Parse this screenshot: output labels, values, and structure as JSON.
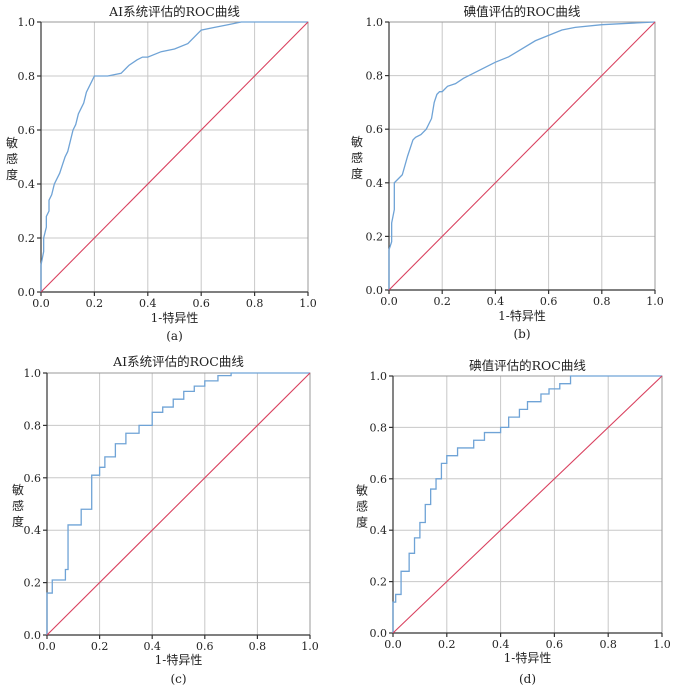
{
  "chart_data": [
    {
      "panel": "(a)",
      "type": "line",
      "title": "AI系统评估的ROC曲线",
      "xlabel": "1-特异性",
      "ylabel": "敏感度",
      "caption": "(a)",
      "xlim": [
        0,
        1
      ],
      "ylim": [
        0,
        1
      ],
      "xticks": [
        "0.0",
        "0.2",
        "0.4",
        "0.6",
        "0.8",
        "1.0"
      ],
      "yticks": [
        "0.0",
        "0.2",
        "0.4",
        "0.6",
        "0.8",
        "1.0"
      ],
      "series": [
        {
          "name": "ROC",
          "x": [
            0,
            0,
            0.01,
            0.01,
            0.02,
            0.02,
            0.03,
            0.03,
            0.04,
            0.05,
            0.06,
            0.07,
            0.08,
            0.09,
            0.1,
            0.11,
            0.12,
            0.13,
            0.14,
            0.15,
            0.16,
            0.17,
            0.18,
            0.19,
            0.2,
            0.21,
            0.22,
            0.25,
            0.3,
            0.33,
            0.36,
            0.38,
            0.4,
            0.45,
            0.5,
            0.55,
            0.6,
            0.65,
            0.7,
            0.75,
            1.0
          ],
          "y": [
            0,
            0.1,
            0.15,
            0.2,
            0.24,
            0.28,
            0.3,
            0.34,
            0.36,
            0.4,
            0.42,
            0.44,
            0.47,
            0.5,
            0.52,
            0.56,
            0.6,
            0.62,
            0.66,
            0.68,
            0.7,
            0.74,
            0.76,
            0.78,
            0.8,
            0.8,
            0.8,
            0.8,
            0.81,
            0.84,
            0.86,
            0.87,
            0.87,
            0.89,
            0.9,
            0.92,
            0.97,
            0.98,
            0.99,
            1.0,
            1.0
          ]
        },
        {
          "name": "reference",
          "x": [
            0,
            1
          ],
          "y": [
            0,
            1
          ]
        }
      ]
    },
    {
      "panel": "(b)",
      "type": "line",
      "title": "碘值评估的ROC曲线",
      "xlabel": "1-特异性",
      "ylabel": "敏感度",
      "caption": "(b)",
      "xlim": [
        0,
        1
      ],
      "ylim": [
        0,
        1
      ],
      "xticks": [
        "0.0",
        "0.2",
        "0.4",
        "0.6",
        "0.8",
        "1.0"
      ],
      "yticks": [
        "0.0",
        "0.2",
        "0.4",
        "0.6",
        "0.8",
        "1.0"
      ],
      "series": [
        {
          "name": "ROC",
          "x": [
            0,
            0,
            0.01,
            0.01,
            0.02,
            0.02,
            0.03,
            0.05,
            0.07,
            0.09,
            0.1,
            0.12,
            0.14,
            0.16,
            0.17,
            0.18,
            0.19,
            0.2,
            0.22,
            0.25,
            0.28,
            0.32,
            0.36,
            0.4,
            0.45,
            0.5,
            0.55,
            0.6,
            0.65,
            0.7,
            0.8,
            1.0
          ],
          "y": [
            0,
            0.15,
            0.18,
            0.25,
            0.3,
            0.4,
            0.41,
            0.43,
            0.5,
            0.56,
            0.57,
            0.58,
            0.6,
            0.64,
            0.7,
            0.73,
            0.74,
            0.74,
            0.76,
            0.77,
            0.79,
            0.81,
            0.83,
            0.85,
            0.87,
            0.9,
            0.93,
            0.95,
            0.97,
            0.98,
            0.99,
            1.0
          ]
        },
        {
          "name": "reference",
          "x": [
            0,
            1
          ],
          "y": [
            0,
            1
          ]
        }
      ]
    },
    {
      "panel": "(c)",
      "type": "line",
      "title": "AI系统评估的ROC曲线",
      "xlabel": "1-特异性",
      "ylabel": "敏感度",
      "caption": "(c)",
      "xlim": [
        0,
        1
      ],
      "ylim": [
        0,
        1
      ],
      "xticks": [
        "0.0",
        "0.2",
        "0.4",
        "0.6",
        "0.8",
        "1.0"
      ],
      "yticks": [
        "0.0",
        "0.2",
        "0.4",
        "0.6",
        "0.8",
        "1.0"
      ],
      "series": [
        {
          "name": "ROC",
          "x": [
            0,
            0,
            0.02,
            0.02,
            0.07,
            0.07,
            0.08,
            0.08,
            0.13,
            0.13,
            0.17,
            0.17,
            0.2,
            0.2,
            0.22,
            0.22,
            0.26,
            0.26,
            0.3,
            0.3,
            0.35,
            0.35,
            0.4,
            0.4,
            0.44,
            0.44,
            0.48,
            0.48,
            0.52,
            0.52,
            0.56,
            0.56,
            0.6,
            0.6,
            0.65,
            0.65,
            0.7,
            0.7,
            1.0
          ],
          "y": [
            0,
            0.16,
            0.16,
            0.21,
            0.21,
            0.25,
            0.25,
            0.42,
            0.42,
            0.48,
            0.48,
            0.61,
            0.61,
            0.64,
            0.64,
            0.68,
            0.68,
            0.73,
            0.73,
            0.77,
            0.77,
            0.8,
            0.8,
            0.85,
            0.85,
            0.87,
            0.87,
            0.9,
            0.9,
            0.93,
            0.93,
            0.95,
            0.95,
            0.97,
            0.97,
            0.99,
            0.99,
            1.0,
            1.0
          ]
        },
        {
          "name": "reference",
          "x": [
            0,
            1
          ],
          "y": [
            0,
            1
          ]
        }
      ]
    },
    {
      "panel": "(d)",
      "type": "line",
      "title": "碘值评估的ROC曲线",
      "xlabel": "1-特异性",
      "ylabel": "敏感度",
      "caption": "(d)",
      "xlim": [
        0,
        1
      ],
      "ylim": [
        0,
        1
      ],
      "xticks": [
        "0.0",
        "0.2",
        "0.4",
        "0.6",
        "0.8",
        "1.0"
      ],
      "yticks": [
        "0.0",
        "0.2",
        "0.4",
        "0.6",
        "0.8",
        "1.0"
      ],
      "series": [
        {
          "name": "ROC",
          "x": [
            0,
            0,
            0.01,
            0.01,
            0.03,
            0.03,
            0.06,
            0.06,
            0.08,
            0.08,
            0.1,
            0.1,
            0.12,
            0.12,
            0.14,
            0.14,
            0.16,
            0.16,
            0.18,
            0.18,
            0.2,
            0.2,
            0.24,
            0.24,
            0.3,
            0.3,
            0.34,
            0.34,
            0.4,
            0.4,
            0.43,
            0.43,
            0.47,
            0.47,
            0.5,
            0.5,
            0.55,
            0.55,
            0.58,
            0.58,
            0.62,
            0.62,
            0.66,
            0.66,
            1.0
          ],
          "y": [
            0,
            0.12,
            0.12,
            0.15,
            0.15,
            0.24,
            0.24,
            0.31,
            0.31,
            0.37,
            0.37,
            0.43,
            0.43,
            0.5,
            0.5,
            0.56,
            0.56,
            0.6,
            0.6,
            0.66,
            0.66,
            0.69,
            0.69,
            0.72,
            0.72,
            0.75,
            0.75,
            0.78,
            0.78,
            0.8,
            0.8,
            0.84,
            0.84,
            0.87,
            0.87,
            0.9,
            0.9,
            0.93,
            0.93,
            0.95,
            0.95,
            0.97,
            0.97,
            1.0,
            1.0
          ]
        },
        {
          "name": "reference",
          "x": [
            0,
            1
          ],
          "y": [
            0,
            1
          ]
        }
      ]
    }
  ],
  "colors": {
    "roc_line": "#6fa3d6",
    "reference_line": "#d9415f",
    "grid": "#c8c8c8"
  }
}
